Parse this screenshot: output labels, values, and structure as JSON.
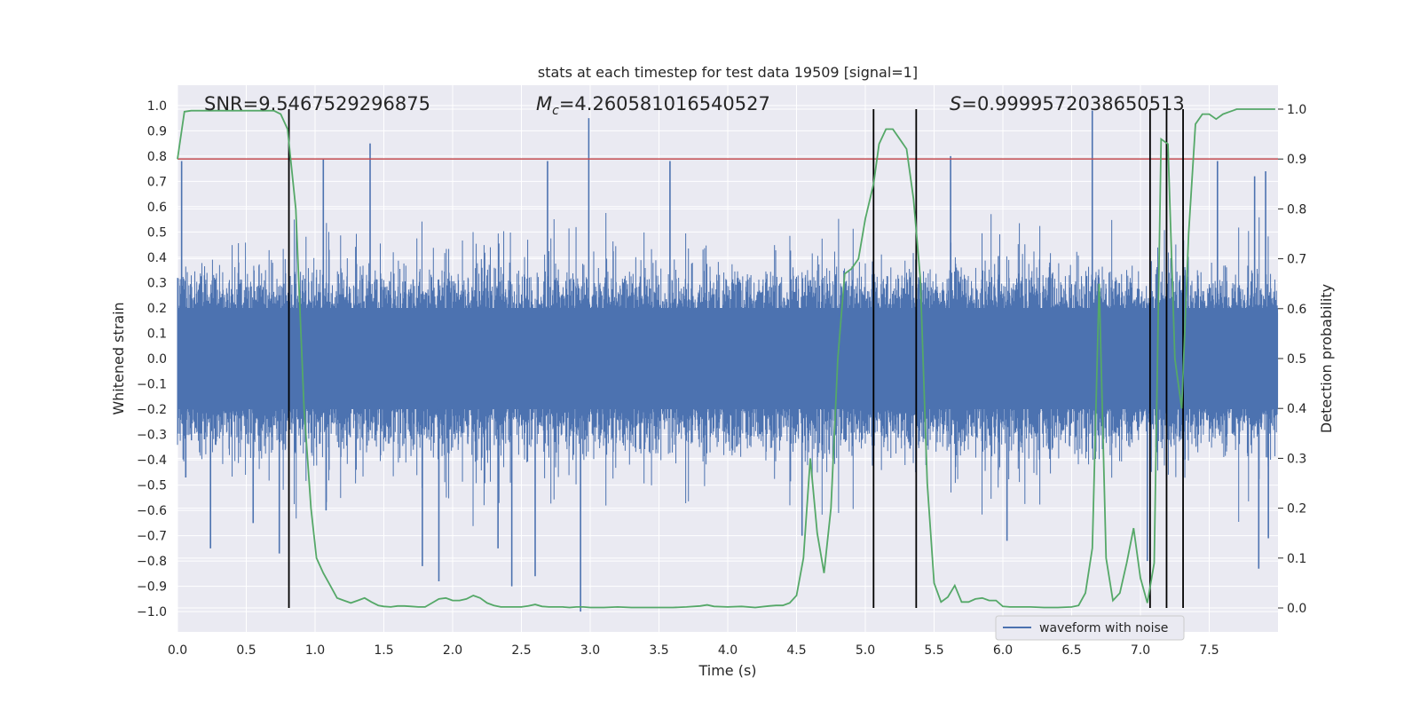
{
  "chart_data": {
    "type": "line",
    "title": "stats at each timestep for test data 19509 [signal=1]",
    "xlabel": "Time (s)",
    "ylabel": "Whitened strain",
    "y2label": "Detection probability",
    "xlim": [
      0.0,
      8.0
    ],
    "ylim": [
      -1.08,
      1.08
    ],
    "y2lim": [
      -0.048,
      1.048
    ],
    "xticks": [
      "0.0",
      "0.5",
      "1.0",
      "1.5",
      "2.0",
      "2.5",
      "3.0",
      "3.5",
      "4.0",
      "4.5",
      "5.0",
      "5.5",
      "6.0",
      "6.5",
      "7.0",
      "7.5"
    ],
    "yticks": [
      "1.0",
      "0.9",
      "0.8",
      "0.7",
      "0.6",
      "0.5",
      "0.4",
      "0.3",
      "0.2",
      "0.1",
      "0.0",
      "-0.1",
      "-0.2",
      "-0.3",
      "-0.4",
      "-0.5",
      "-0.6",
      "-0.7",
      "-0.8",
      "-0.9",
      "-1.0"
    ],
    "y2ticks": [
      "0.0",
      "0.1",
      "0.2",
      "0.3",
      "0.4",
      "0.5",
      "0.6",
      "0.7",
      "0.8",
      "0.9",
      "1.0"
    ],
    "annotations": {
      "snr": "SNR=9.5467529296875",
      "mc_symbol": "M",
      "mc_sub": "c",
      "mc_value": "=4.260581016540527",
      "s_symbol": "S",
      "s_value": "=0.9999572038650513"
    },
    "threshold": {
      "value": 0.9,
      "axis": "y2",
      "color": "#c44e52"
    },
    "event_markers_x": [
      0.81,
      5.06,
      5.37,
      7.07,
      7.19,
      7.31
    ],
    "waveform": {
      "name": "waveform with noise",
      "color": "#4c72b0",
      "typical_envelope": 0.42,
      "spikes": [
        {
          "x": 0.03,
          "y": 0.78
        },
        {
          "x": 0.06,
          "y": -0.47
        },
        {
          "x": 0.24,
          "y": -0.75
        },
        {
          "x": 0.55,
          "y": -0.65
        },
        {
          "x": 0.74,
          "y": -0.77
        },
        {
          "x": 1.06,
          "y": 0.79
        },
        {
          "x": 1.08,
          "y": -0.6
        },
        {
          "x": 1.4,
          "y": 0.85
        },
        {
          "x": 1.78,
          "y": -0.82
        },
        {
          "x": 1.9,
          "y": -0.88
        },
        {
          "x": 2.33,
          "y": -0.75
        },
        {
          "x": 2.43,
          "y": -0.9
        },
        {
          "x": 2.6,
          "y": -0.86
        },
        {
          "x": 2.69,
          "y": 0.78
        },
        {
          "x": 2.93,
          "y": -1.0
        },
        {
          "x": 2.99,
          "y": 0.95
        },
        {
          "x": 3.58,
          "y": 0.78
        },
        {
          "x": 4.54,
          "y": -0.7
        },
        {
          "x": 5.62,
          "y": 0.8
        },
        {
          "x": 6.03,
          "y": -0.72
        },
        {
          "x": 6.65,
          "y": 0.98
        },
        {
          "x": 7.05,
          "y": -0.8
        },
        {
          "x": 7.56,
          "y": 0.78
        },
        {
          "x": 7.83,
          "y": 0.72
        },
        {
          "x": 7.86,
          "y": -0.83
        },
        {
          "x": 7.91,
          "y": 0.74
        },
        {
          "x": 7.93,
          "y": -0.71
        }
      ]
    },
    "detection_probability": {
      "color": "#55a868",
      "x": [
        0.0,
        0.05,
        0.1,
        0.15,
        0.2,
        0.25,
        0.3,
        0.35,
        0.4,
        0.45,
        0.5,
        0.55,
        0.6,
        0.65,
        0.7,
        0.75,
        0.8,
        0.86,
        0.92,
        0.97,
        1.01,
        1.06,
        1.11,
        1.16,
        1.21,
        1.26,
        1.31,
        1.36,
        1.41,
        1.46,
        1.5,
        1.55,
        1.6,
        1.65,
        1.7,
        1.75,
        1.8,
        1.85,
        1.9,
        1.95,
        2.0,
        2.05,
        2.1,
        2.15,
        2.2,
        2.25,
        2.3,
        2.35,
        2.4,
        2.45,
        2.5,
        2.55,
        2.6,
        2.65,
        2.7,
        2.75,
        2.8,
        2.85,
        2.9,
        2.95,
        3.0,
        3.1,
        3.2,
        3.3,
        3.4,
        3.5,
        3.6,
        3.7,
        3.8,
        3.85,
        3.9,
        4.0,
        4.1,
        4.2,
        4.3,
        4.35,
        4.4,
        4.45,
        4.5,
        4.55,
        4.6,
        4.65,
        4.7,
        4.75,
        4.8,
        4.85,
        4.9,
        4.95,
        5.0,
        5.06,
        5.1,
        5.15,
        5.2,
        5.25,
        5.3,
        5.35,
        5.4,
        5.45,
        5.5,
        5.55,
        5.6,
        5.65,
        5.7,
        5.75,
        5.8,
        5.85,
        5.9,
        5.95,
        6.0,
        6.05,
        6.1,
        6.2,
        6.3,
        6.4,
        6.5,
        6.55,
        6.6,
        6.65,
        6.7,
        6.75,
        6.8,
        6.85,
        6.9,
        6.95,
        7.0,
        7.05,
        7.1,
        7.15,
        7.2,
        7.25,
        7.3,
        7.35,
        7.4,
        7.45,
        7.5,
        7.55,
        7.6,
        7.65,
        7.7,
        7.8,
        7.9,
        7.98
      ],
      "y": [
        0.9,
        0.995,
        0.997,
        0.997,
        0.997,
        0.997,
        0.997,
        0.997,
        0.997,
        0.997,
        0.997,
        0.997,
        0.997,
        0.997,
        0.997,
        0.99,
        0.96,
        0.8,
        0.4,
        0.2,
        0.1,
        0.07,
        0.045,
        0.02,
        0.015,
        0.01,
        0.015,
        0.02,
        0.012,
        0.005,
        0.003,
        0.002,
        0.004,
        0.004,
        0.003,
        0.002,
        0.002,
        0.01,
        0.018,
        0.02,
        0.015,
        0.015,
        0.018,
        0.025,
        0.02,
        0.01,
        0.005,
        0.002,
        0.002,
        0.002,
        0.002,
        0.004,
        0.007,
        0.003,
        0.002,
        0.002,
        0.002,
        0.001,
        0.002,
        0.002,
        0.001,
        0.001,
        0.002,
        0.001,
        0.001,
        0.001,
        0.001,
        0.002,
        0.004,
        0.006,
        0.003,
        0.002,
        0.003,
        0.001,
        0.004,
        0.005,
        0.005,
        0.01,
        0.025,
        0.1,
        0.3,
        0.15,
        0.07,
        0.2,
        0.5,
        0.67,
        0.68,
        0.7,
        0.78,
        0.85,
        0.93,
        0.96,
        0.96,
        0.94,
        0.92,
        0.82,
        0.66,
        0.25,
        0.05,
        0.012,
        0.022,
        0.045,
        0.012,
        0.012,
        0.018,
        0.02,
        0.015,
        0.015,
        0.003,
        0.002,
        0.002,
        0.002,
        0.001,
        0.001,
        0.002,
        0.005,
        0.03,
        0.12,
        0.65,
        0.1,
        0.015,
        0.03,
        0.09,
        0.16,
        0.06,
        0.01,
        0.09,
        0.94,
        0.93,
        0.5,
        0.4,
        0.75,
        0.97,
        0.99,
        0.99,
        0.98,
        0.99,
        0.995,
        1.0,
        1.0,
        1.0,
        1.0
      ]
    },
    "legend": {
      "entries": [
        "waveform with noise"
      ],
      "placement": "lower-right"
    },
    "grid": true
  }
}
